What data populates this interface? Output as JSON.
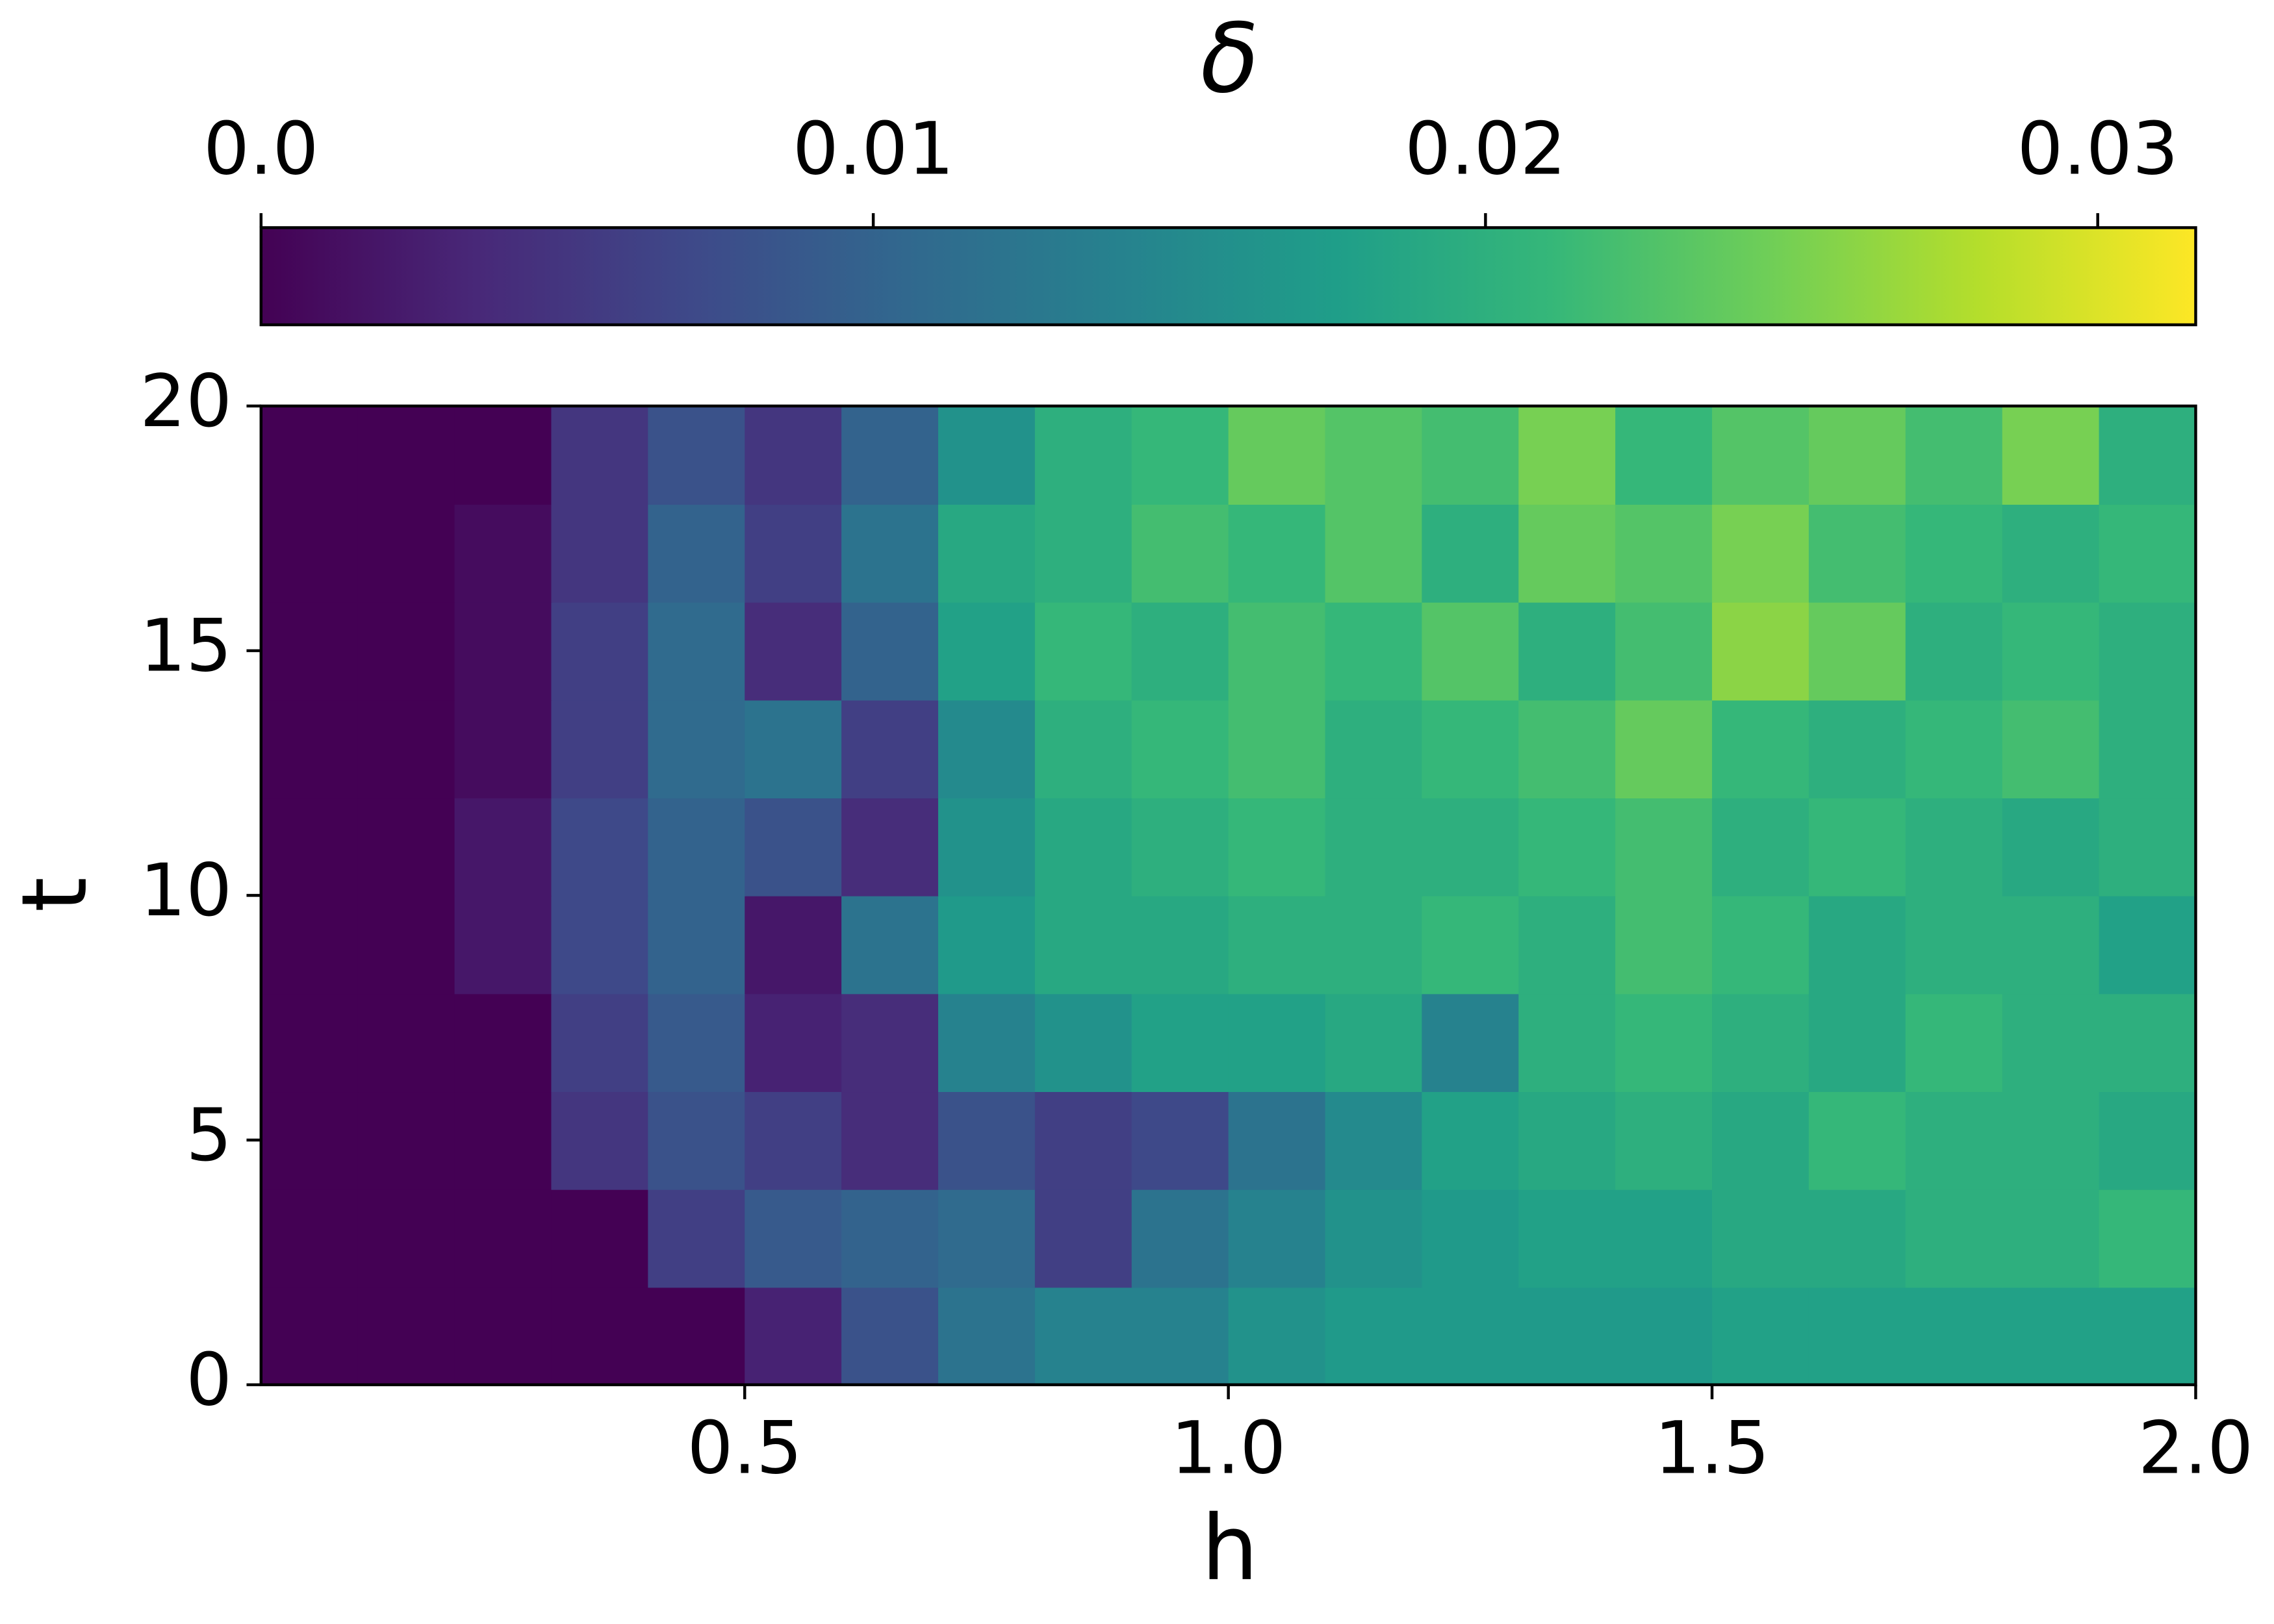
{
  "chart_data": {
    "type": "heatmap",
    "colorbar_label": "δ",
    "xlabel": "h",
    "ylabel": "t",
    "xlim": [
      0,
      2
    ],
    "ylim": [
      0,
      20
    ],
    "xticks": [
      0.5,
      {
        "value": 1,
        "label": "1.0"
      },
      1.5,
      {
        "value": 2,
        "label": "2.0"
      }
    ],
    "yticks": [
      0,
      5,
      10,
      15,
      20
    ],
    "clim": [
      0,
      0.0316
    ],
    "cticks": [
      {
        "value": 0,
        "label": "0.0"
      },
      0.01,
      0.02,
      0.03
    ],
    "colorscale": [
      "#440154",
      "#482878",
      "#3e4989",
      "#31688e",
      "#26828e",
      "#1f9e89",
      "#35b779",
      "#6ece58",
      "#b5de2b",
      "#fde725"
    ],
    "colorbar_position": "top",
    "z": [
      [
        0,
        0,
        0,
        0,
        0,
        0.003,
        0.008,
        0.012,
        0.014,
        0.014,
        0.016,
        0.017,
        0.017,
        0.017,
        0.017,
        0.018,
        0.018,
        0.018,
        0.018,
        0.018
      ],
      [
        0,
        0,
        0,
        0,
        0.006,
        0.009,
        0.01,
        0.011,
        0.006,
        0.012,
        0.014,
        0.016,
        0.017,
        0.018,
        0.018,
        0.019,
        0.019,
        0.02,
        0.02,
        0.021
      ],
      [
        0,
        0,
        0,
        0.005,
        0.008,
        0.006,
        0.004,
        0.008,
        0.006,
        0.007,
        0.012,
        0.015,
        0.018,
        0.019,
        0.02,
        0.019,
        0.021,
        0.02,
        0.02,
        0.019
      ],
      [
        0,
        0,
        0,
        0.006,
        0.009,
        0.003,
        0.004,
        0.014,
        0.016,
        0.018,
        0.018,
        0.019,
        0.014,
        0.02,
        0.021,
        0.02,
        0.019,
        0.021,
        0.02,
        0.02
      ],
      [
        0,
        0,
        0.002,
        0.007,
        0.01,
        0.002,
        0.012,
        0.017,
        0.019,
        0.019,
        0.02,
        0.02,
        0.021,
        0.02,
        0.022,
        0.021,
        0.019,
        0.02,
        0.02,
        0.018
      ],
      [
        0,
        0,
        0.002,
        0.007,
        0.01,
        0.008,
        0.004,
        0.016,
        0.019,
        0.02,
        0.021,
        0.02,
        0.02,
        0.021,
        0.022,
        0.02,
        0.021,
        0.02,
        0.019,
        0.02
      ],
      [
        0,
        0,
        0.001,
        0.006,
        0.011,
        0.012,
        0.006,
        0.015,
        0.02,
        0.021,
        0.022,
        0.02,
        0.021,
        0.022,
        0.024,
        0.021,
        0.02,
        0.021,
        0.022,
        0.02
      ],
      [
        0,
        0,
        0.001,
        0.006,
        0.011,
        0.004,
        0.01,
        0.018,
        0.021,
        0.02,
        0.022,
        0.021,
        0.023,
        0.02,
        0.022,
        0.026,
        0.024,
        0.02,
        0.021,
        0.02
      ],
      [
        0,
        0,
        0.001,
        0.005,
        0.01,
        0.006,
        0.012,
        0.019,
        0.02,
        0.022,
        0.021,
        0.023,
        0.02,
        0.024,
        0.023,
        0.025,
        0.022,
        0.021,
        0.02,
        0.021
      ],
      [
        0,
        0,
        0,
        0.005,
        0.008,
        0.005,
        0.01,
        0.016,
        0.02,
        0.021,
        0.024,
        0.023,
        0.022,
        0.025,
        0.021,
        0.023,
        0.024,
        0.022,
        0.025,
        0.02
      ]
    ]
  }
}
